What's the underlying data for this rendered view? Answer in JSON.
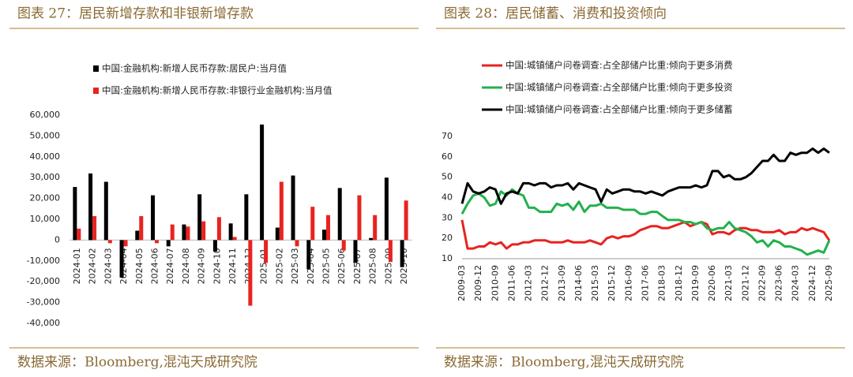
{
  "chart_data": [
    {
      "type": "bar",
      "title": "图表 27：居民新增存款和非银新增存款",
      "source": "数据来源：Bloomberg,混沌天成研究院",
      "categories": [
        "2024-01",
        "2024-02",
        "2024-03",
        "2024-04",
        "2024-05",
        "2024-06",
        "2024-07",
        "2024-08",
        "2024-09",
        "2024-10",
        "2024-11",
        "2024-12",
        "2025-01",
        "2025-02",
        "2025-03",
        "2025-04",
        "2025-05",
        "2025-06",
        "2025-07",
        "2025-08",
        "2025-09",
        "2025-10"
      ],
      "series": [
        {
          "name": "中国:金融机构:新增人民币存款:居民户:当月值",
          "color": "#000000",
          "values": [
            25500,
            32000,
            28000,
            -18000,
            4500,
            21500,
            -3000,
            7500,
            22000,
            -5500,
            8000,
            22000,
            55500,
            6000,
            31000,
            -14000,
            5000,
            25000,
            -11000,
            1000,
            30000,
            -13000
          ]
        },
        {
          "name": "中国:金融机构:新增人民币存款:非银行业金融机构:当月值",
          "color": "#e8231f",
          "values": [
            5500,
            11500,
            -1500,
            -3000,
            11500,
            -1500,
            7500,
            6500,
            9000,
            11000,
            1500,
            -31500,
            -11000,
            28000,
            -3000,
            16000,
            12000,
            -5000,
            21500,
            12000,
            -10500,
            19000
          ]
        }
      ],
      "ylim": [
        -40000,
        60000
      ],
      "yticks": [
        {
          "value": -40000,
          "label": "-40,000"
        },
        {
          "value": -30000,
          "label": "-30,000"
        },
        {
          "value": -20000,
          "label": "-20,000"
        },
        {
          "value": -10000,
          "label": "-10,000"
        },
        0,
        {
          "value": 10000,
          "label": "10,000"
        },
        {
          "value": 20000,
          "label": "20,000"
        },
        {
          "value": 30000,
          "label": "30,000"
        },
        {
          "value": 40000,
          "label": "40,000"
        },
        {
          "value": 50000,
          "label": "50,000"
        },
        {
          "value": 60000,
          "label": "60,000"
        }
      ],
      "grid": false
    },
    {
      "type": "line",
      "title": "图表 28：居民储蓄、消费和投资倾向",
      "source": "数据来源：Bloomberg,混沌天成研究院",
      "categories": [
        "2009-03",
        null,
        null,
        "2009-12",
        null,
        null,
        "2010-09",
        null,
        null,
        "2011-06",
        null,
        null,
        "2012-03",
        null,
        null,
        "2012-12",
        null,
        null,
        "2013-09",
        null,
        null,
        "2014-06",
        null,
        null,
        "2015-03",
        null,
        null,
        "2015-12",
        null,
        null,
        "2016-09",
        null,
        null,
        "2017-06",
        null,
        null,
        "2018-03",
        null,
        null,
        "2018-12",
        null,
        null,
        "2019-09",
        null,
        null,
        "2020-06",
        null,
        null,
        "2021-03",
        null,
        null,
        "2021-12",
        null,
        null,
        "2022-09",
        null,
        null,
        "2023-06",
        null,
        null,
        "2024-03",
        null,
        null,
        "2024-12",
        null,
        null,
        "2025-09"
      ],
      "series": [
        {
          "name": "中国:城镇储户问卷调查:占全部储户比重:倾向于更多消费",
          "color": "#e8231f",
          "values": [
            29,
            15,
            15,
            16,
            16,
            18,
            17,
            18,
            15,
            17,
            17,
            18,
            18,
            19,
            19,
            19,
            18,
            18,
            18,
            19,
            18,
            18,
            18,
            19,
            18,
            17,
            20,
            21,
            20,
            21,
            21,
            22,
            24,
            25,
            26,
            26,
            25,
            25,
            26,
            27,
            28,
            26,
            27,
            28,
            27,
            22,
            23,
            23,
            22,
            24,
            25,
            25,
            24,
            24,
            23,
            23,
            23,
            24,
            22,
            23,
            23,
            25,
            24,
            25,
            24,
            23,
            19
          ]
        },
        {
          "name": "中国:城镇储户问卷调查:占全部储户比重:倾向于更多投资",
          "color": "#22b14c",
          "values": [
            32,
            37,
            41,
            42,
            40,
            36,
            37,
            43,
            41,
            44,
            42,
            41,
            35,
            35,
            33,
            33,
            33,
            37,
            36,
            37,
            34,
            38,
            33,
            36,
            36,
            37,
            35,
            35,
            35,
            34,
            34,
            34,
            32,
            32,
            33,
            33,
            31,
            29,
            29,
            29,
            28,
            28,
            27,
            28,
            25,
            24,
            25,
            25,
            28,
            25,
            24,
            23,
            21,
            18,
            19,
            16,
            19,
            18,
            16,
            16,
            15,
            14,
            12,
            13,
            14,
            13,
            19
          ]
        },
        {
          "name": "中国:城镇储户问卷调查:占全部储户比重:倾向于更多储蓄",
          "color": "#000000",
          "values": [
            37,
            47,
            43,
            42,
            43,
            45,
            44,
            37,
            42,
            43,
            42,
            47,
            47,
            46,
            47,
            47,
            45,
            46,
            46,
            47,
            44,
            47,
            46,
            45,
            44,
            38,
            44,
            42,
            43,
            44,
            44,
            43,
            43,
            42,
            43,
            42,
            41,
            43,
            44,
            45,
            45,
            45,
            46,
            45,
            46,
            53,
            53,
            50,
            51,
            49,
            49,
            50,
            52,
            55,
            58,
            58,
            61,
            58,
            58,
            62,
            61,
            62,
            62,
            64,
            62,
            64,
            62
          ]
        }
      ],
      "ylim": [
        10,
        70
      ],
      "yticks": [
        10,
        20,
        30,
        40,
        50,
        60,
        70
      ],
      "grid": false
    }
  ]
}
